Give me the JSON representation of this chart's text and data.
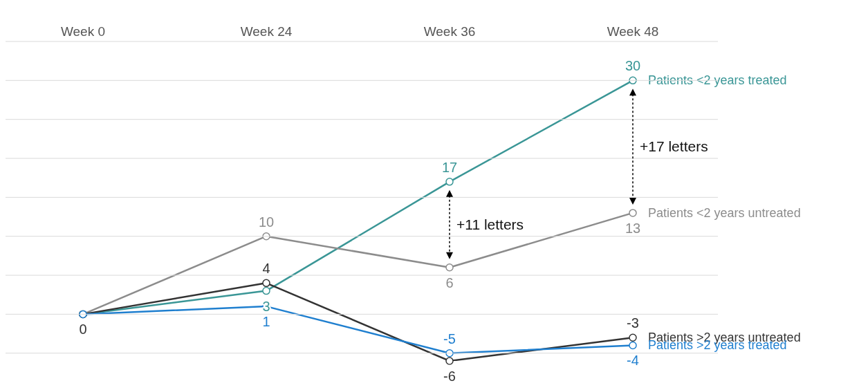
{
  "chart_data": {
    "type": "line",
    "categories": [
      "Week 0",
      "Week 24",
      "Week 36",
      "Week 48"
    ],
    "series": [
      {
        "name": "Patients <2 years treated",
        "color": "#3a9696",
        "values": [
          0,
          3,
          17,
          30
        ],
        "value_labels": [
          null,
          "3",
          "17",
          "30"
        ]
      },
      {
        "name": "Patients <2 years untreated",
        "color": "#8c8c8c",
        "values": [
          0,
          10,
          6,
          13
        ],
        "value_labels": [
          null,
          "10",
          "6",
          "13"
        ]
      },
      {
        "name": "Patients >2 years untreated",
        "color": "#333333",
        "values": [
          0,
          4,
          -6,
          -3
        ],
        "value_labels": [
          "0",
          "4",
          "-6",
          "-3"
        ]
      },
      {
        "name": "Patients >2 years treated",
        "color": "#1f7fcf",
        "values": [
          0,
          1,
          -5,
          -4
        ],
        "value_labels": [
          null,
          "1",
          "-5",
          "-4"
        ]
      }
    ],
    "yticks": [
      {
        "value": -5,
        "label": null
      },
      {
        "value": 0,
        "label": null
      },
      {
        "value": 5,
        "label": null
      },
      {
        "value": 10,
        "label": null
      },
      {
        "value": 15,
        "label": null
      },
      {
        "value": 20,
        "label": null
      },
      {
        "value": 25,
        "label": null
      },
      {
        "value": 30,
        "label": null
      },
      {
        "value": 35,
        "label": null
      }
    ],
    "grid": "y",
    "tick_labels": "x",
    "marker": "circle",
    "annotations": [
      "+11 letters",
      "+17 letters"
    ]
  }
}
